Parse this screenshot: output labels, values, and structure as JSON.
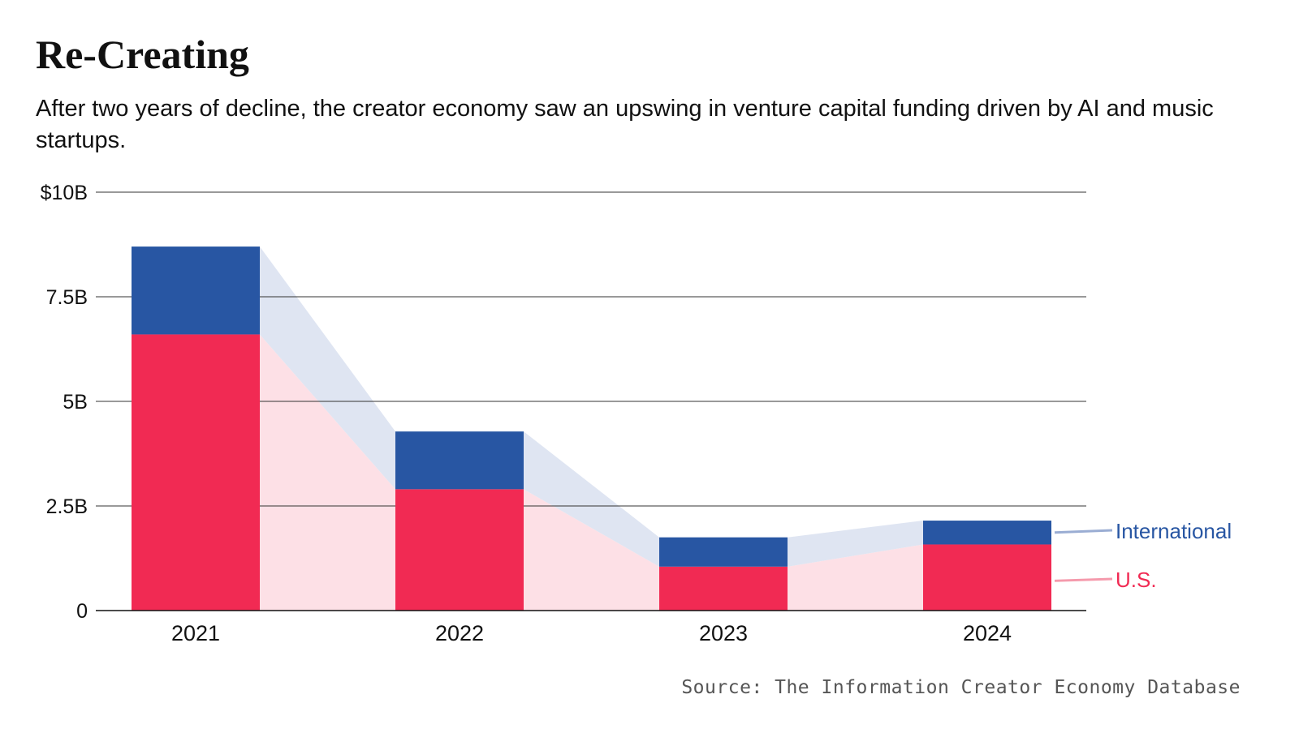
{
  "header": {
    "title": "Re-Creating",
    "subtitle": "After two years of decline, the creator economy saw an upswing in venture capital funding driven by AI and music startups."
  },
  "footer": {
    "source": "Source: The Information Creator Economy Database"
  },
  "chart_data": {
    "type": "bar",
    "stacked": true,
    "categories": [
      "2021",
      "2022",
      "2023",
      "2024"
    ],
    "series": [
      {
        "name": "U.S.",
        "values": [
          6.6,
          2.9,
          1.05,
          1.58
        ],
        "color": "#f12a53",
        "band_color": "#fde0e6"
      },
      {
        "name": "International",
        "values": [
          2.1,
          1.38,
          0.7,
          0.57
        ],
        "color": "#2856a3",
        "band_color": "#dfe5f2"
      }
    ],
    "y_ticks": [
      {
        "value": 0,
        "label": "0"
      },
      {
        "value": 2.5,
        "label": "2.5B"
      },
      {
        "value": 5,
        "label": "5B"
      },
      {
        "value": 7.5,
        "label": "7.5B"
      },
      {
        "value": 10,
        "label": "$10B"
      }
    ],
    "ylim": [
      0,
      10
    ],
    "grid": true,
    "legend_placement": "right, inline at end of bars",
    "title": "",
    "xlabel": "",
    "ylabel": ""
  }
}
